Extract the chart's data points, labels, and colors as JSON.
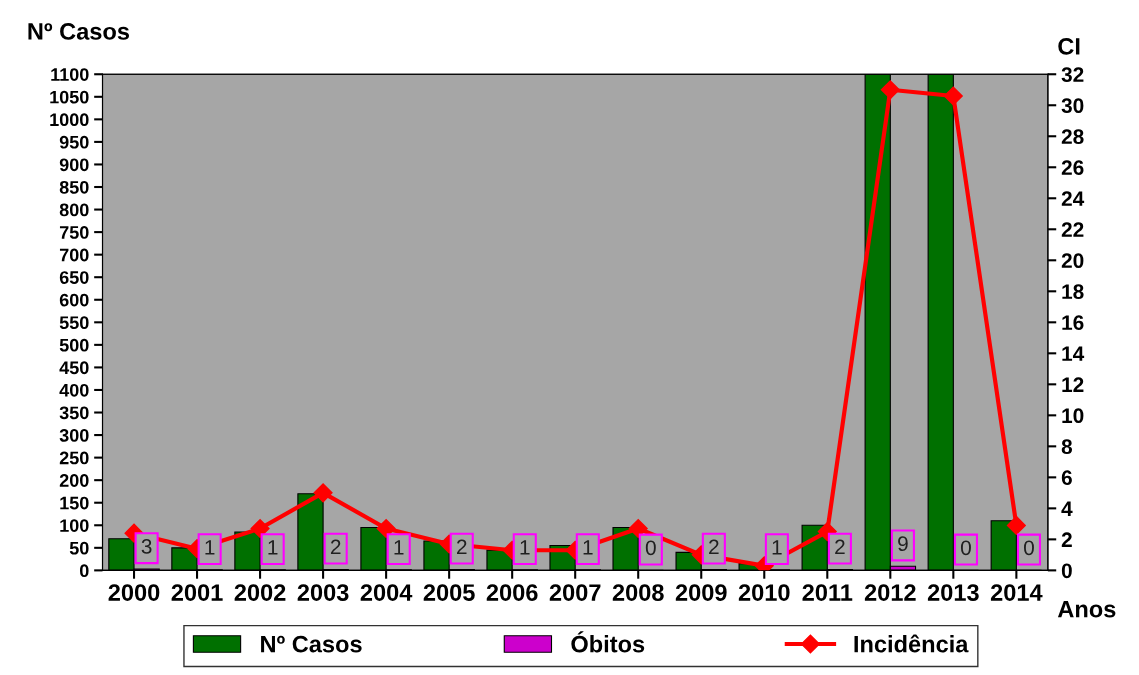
{
  "chart_data": {
    "type": "bar",
    "ylabel": "Nº Casos",
    "y2label": "CI",
    "xlabel": "Anos",
    "categories": [
      "2000",
      "2001",
      "2002",
      "2003",
      "2004",
      "2005",
      "2006",
      "2007",
      "2008",
      "2009",
      "2010",
      "2011",
      "2012",
      "2013",
      "2014"
    ],
    "series": [
      {
        "name": "Nº Casos",
        "color": "#007000",
        "values": [
          70,
          50,
          85,
          170,
          95,
          65,
          45,
          55,
          95,
          40,
          15,
          100,
          1100,
          1100,
          110
        ]
      },
      {
        "name": "Óbitos",
        "color": "#cc00cc",
        "values": [
          3,
          1,
          1,
          2,
          1,
          2,
          1,
          1,
          0,
          2,
          1,
          2,
          9,
          0,
          0
        ],
        "value_labels": [
          "3",
          "1",
          "1",
          "2",
          "1",
          "2",
          "1",
          "1",
          "0",
          "2",
          "1",
          "2",
          "9",
          "0",
          "0"
        ]
      },
      {
        "name": "Incidência",
        "type": "line",
        "axis": "y2",
        "color": "#ff0000",
        "marker": "diamond",
        "values": [
          2.4,
          1.4,
          2.7,
          5.0,
          2.7,
          1.7,
          1.3,
          1.3,
          2.7,
          1.0,
          0.3,
          2.5,
          31.0,
          30.6,
          2.9
        ]
      }
    ],
    "ylim": [
      0,
      1100
    ],
    "yticks": [
      0,
      50,
      100,
      150,
      200,
      250,
      300,
      350,
      400,
      450,
      500,
      550,
      600,
      650,
      700,
      750,
      800,
      850,
      900,
      950,
      1000,
      1050,
      1100
    ],
    "y2lim": [
      0,
      32
    ],
    "y2ticks": [
      0,
      2,
      4,
      6,
      8,
      10,
      12,
      14,
      16,
      18,
      20,
      22,
      24,
      26,
      28,
      30,
      32
    ],
    "legend": "bottom",
    "grid": false
  }
}
